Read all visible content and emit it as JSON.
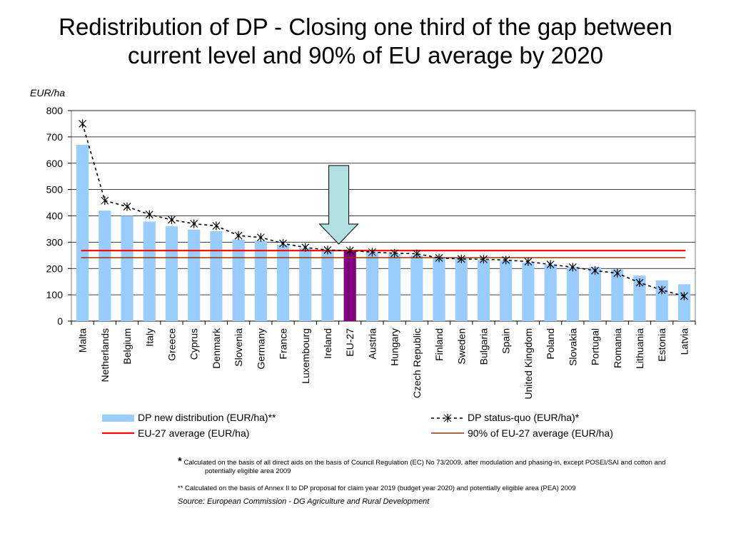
{
  "title_line1": "Redistribution of DP - Closing one third of the gap between",
  "title_line2": "current level and 90% of EU average by 2020",
  "chart_data": {
    "type": "bar",
    "ylabel": "EUR/ha",
    "ylim": [
      0,
      800
    ],
    "yticks": [
      "0",
      "100",
      "200",
      "300",
      "400",
      "500",
      "600",
      "700",
      "800"
    ],
    "grid": true,
    "categories": [
      "Malta",
      "Netherlands",
      "Belgium",
      "Italy",
      "Greece",
      "Cyprus",
      "Denmark",
      "Slovenia",
      "Germany",
      "France",
      "Luxembourg",
      "Ireland",
      "EU-27",
      "Austria",
      "Hungary",
      "Czech Republic",
      "Finland",
      "Sweden",
      "Bulgaria",
      "Spain",
      "United Kingdom",
      "Poland",
      "Slovakia",
      "Portugal",
      "Romania",
      "Lithuania",
      "Estonia",
      "Latvia"
    ],
    "highlight_category": "EU-27",
    "series": [
      {
        "name": "DP new distribution (EUR/ha)**",
        "kind": "bar",
        "color": "#99ccff",
        "highlight_color": "#800080",
        "values": [
          670,
          420,
          400,
          378,
          360,
          348,
          342,
          310,
          305,
          290,
          278,
          272,
          268,
          262,
          256,
          250,
          240,
          238,
          234,
          230,
          222,
          215,
          207,
          205,
          196,
          173,
          155,
          140
        ]
      },
      {
        "name": "DP status-quo (EUR/ha)*",
        "kind": "line",
        "color": "#000000",
        "values": [
          750,
          458,
          435,
          405,
          385,
          370,
          362,
          325,
          318,
          295,
          280,
          270,
          268,
          262,
          258,
          256,
          240,
          236,
          235,
          232,
          226,
          215,
          205,
          192,
          182,
          146,
          118,
          95
        ]
      },
      {
        "name": "EU-27 average (EUR/ha)",
        "kind": "hline",
        "color": "#ff0000",
        "value": 268
      },
      {
        "name": "90% of EU-27 average (EUR/ha)",
        "kind": "hline",
        "color": "#993300",
        "value": 241
      }
    ],
    "annotation_arrow_color": "#b0e0e0"
  },
  "notes": {
    "star": "*",
    "note1_line1": "Calculated on the basis of all direct aids on the basis of Council Regulation (EC) No 73/2009, after modulation and phasing-in, except POSEI/SAI and cotton and",
    "note1_line2": "potentially eligible area 2009",
    "note2": "** Calculated on the basis of Annex II to DP proposal for claim year 2019 (budget year 2020) and potentially eligible area (PEA) 2009",
    "source": "Source: European Commission - DG Agriculture and Rural Development"
  }
}
